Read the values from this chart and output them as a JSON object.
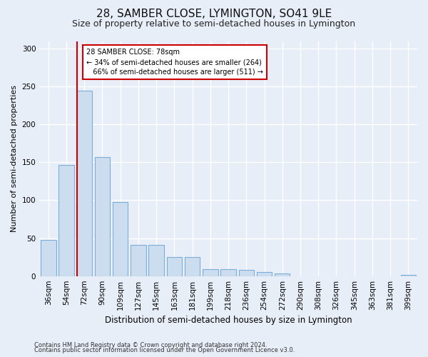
{
  "title_line1": "28, SAMBER CLOSE, LYMINGTON, SO41 9LE",
  "title_line2": "Size of property relative to semi-detached houses in Lymington",
  "xlabel": "Distribution of semi-detached houses by size in Lymington",
  "ylabel": "Number of semi-detached properties",
  "categories": [
    "36sqm",
    "54sqm",
    "72sqm",
    "90sqm",
    "109sqm",
    "127sqm",
    "145sqm",
    "163sqm",
    "181sqm",
    "199sqm",
    "218sqm",
    "236sqm",
    "254sqm",
    "272sqm",
    "290sqm",
    "308sqm",
    "326sqm",
    "345sqm",
    "363sqm",
    "381sqm",
    "399sqm"
  ],
  "values": [
    48,
    147,
    245,
    157,
    98,
    41,
    41,
    25,
    25,
    9,
    9,
    8,
    5,
    3,
    0,
    0,
    0,
    0,
    0,
    0,
    2
  ],
  "bar_color": "#ccddf0",
  "bar_edge_color": "#7aaed6",
  "red_line_color": "#cc0000",
  "annotation_text": "28 SAMBER CLOSE: 78sqm\n← 34% of semi-detached houses are smaller (264)\n   66% of semi-detached houses are larger (511) →",
  "annotation_box_color": "#ffffff",
  "annotation_box_edge_color": "#cc0000",
  "ylim": [
    0,
    310
  ],
  "yticks": [
    0,
    50,
    100,
    150,
    200,
    250,
    300
  ],
  "footnote1": "Contains HM Land Registry data © Crown copyright and database right 2024.",
  "footnote2": "Contains public sector information licensed under the Open Government Licence v3.0.",
  "bg_color": "#e8eef8",
  "grid_color": "#ffffff",
  "title1_fontsize": 11,
  "title2_fontsize": 9,
  "xlabel_fontsize": 8.5,
  "ylabel_fontsize": 8,
  "tick_fontsize": 7.5,
  "footnote_fontsize": 6
}
